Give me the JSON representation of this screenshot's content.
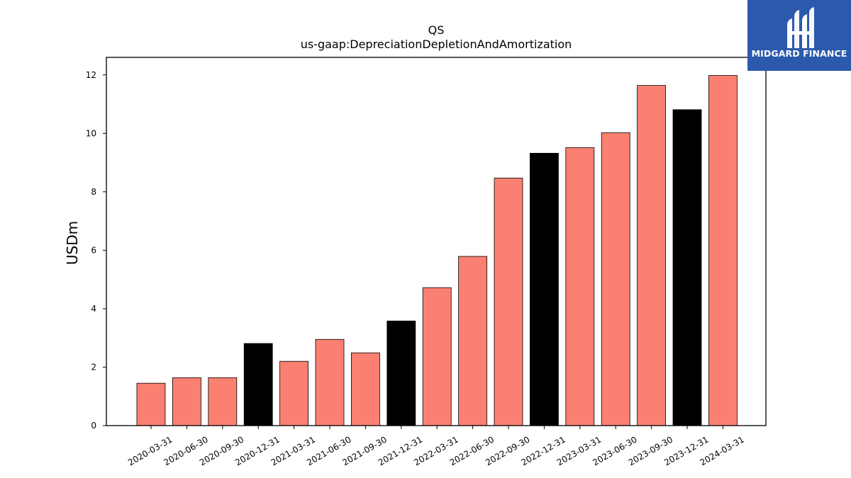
{
  "chart_data": {
    "type": "bar",
    "title": "QS",
    "subtitle": "us-gaap:DepreciationDepletionAndAmortization",
    "xlabel": "",
    "ylabel": "USDm",
    "ylim": [
      0,
      12.6
    ],
    "yticks": [
      0,
      2,
      4,
      6,
      8,
      10,
      12
    ],
    "grid": false,
    "categories": [
      "2020-03-31",
      "2020-06-30",
      "2020-09-30",
      "2020-12-31",
      "2021-03-31",
      "2021-06-30",
      "2021-09-30",
      "2021-12-31",
      "2022-03-31",
      "2022-06-30",
      "2022-09-30",
      "2022-12-31",
      "2023-03-31",
      "2023-06-30",
      "2023-09-30",
      "2023-12-31",
      "2024-03-31"
    ],
    "values": [
      1.45,
      1.64,
      1.64,
      2.81,
      2.2,
      2.95,
      2.49,
      3.58,
      4.72,
      5.79,
      8.47,
      9.32,
      9.51,
      10.02,
      11.64,
      10.81,
      11.98
    ],
    "colors": [
      "#fa8072",
      "#fa8072",
      "#fa8072",
      "#000000",
      "#fa8072",
      "#fa8072",
      "#fa8072",
      "#000000",
      "#fa8072",
      "#fa8072",
      "#fa8072",
      "#000000",
      "#fa8072",
      "#fa8072",
      "#fa8072",
      "#000000",
      "#fa8072"
    ]
  },
  "logo": {
    "text": "MIDGARD FINANCE",
    "background": "#2b5aad",
    "icon": "midgard-logo-icon"
  }
}
